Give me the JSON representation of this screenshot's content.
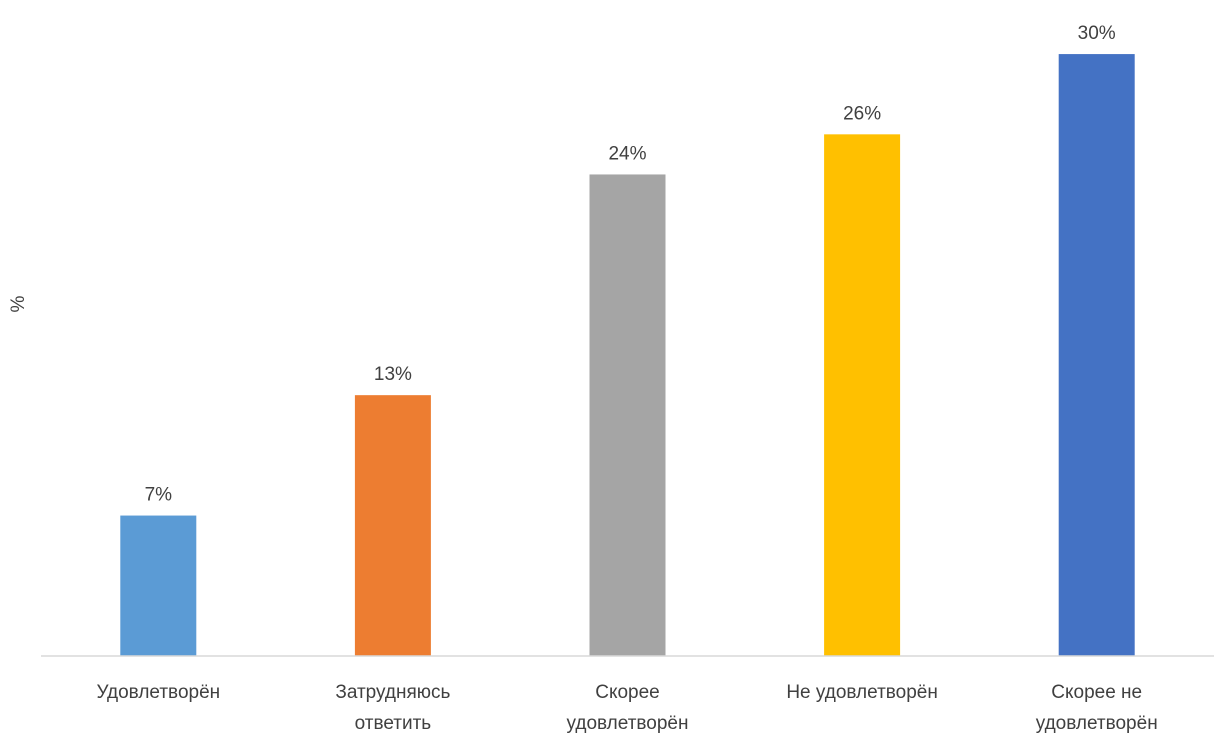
{
  "chart_data": {
    "type": "bar",
    "categories": [
      [
        "Удовлетворён"
      ],
      [
        "Затрудняюсь",
        "ответить"
      ],
      [
        "Скорее",
        "удовлетворён"
      ],
      [
        "Не удовлетворён"
      ],
      [
        "Скорее не",
        "удовлетворён"
      ]
    ],
    "values": [
      7,
      13,
      24,
      26,
      30
    ],
    "data_labels": [
      "7%",
      "13%",
      "24%",
      "26%",
      "30%"
    ],
    "colors": [
      "#5B9BD5",
      "#ED7D31",
      "#A5A5A5",
      "#FFC000",
      "#4472C4"
    ],
    "ylabel": "%",
    "ylim": [
      0,
      31.2
    ],
    "grid": false,
    "legend": "none"
  }
}
